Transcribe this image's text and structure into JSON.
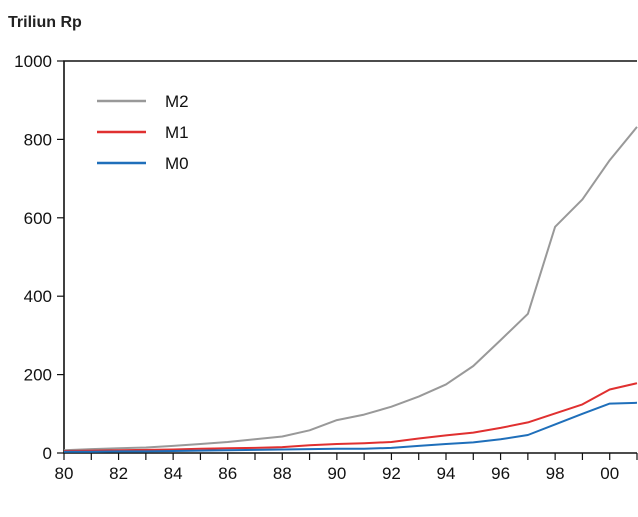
{
  "chart_data": {
    "type": "line",
    "title": "",
    "xlabel": "",
    "ylabel": "Triliun Rp",
    "x": [
      1980,
      1981,
      1982,
      1983,
      1984,
      1985,
      1986,
      1987,
      1988,
      1989,
      1990,
      1991,
      1992,
      1993,
      1994,
      1995,
      1996,
      1997,
      1998,
      1999,
      2000,
      2001
    ],
    "xticks": [
      1980,
      1982,
      1984,
      1986,
      1988,
      1990,
      1992,
      1994,
      1996,
      1998,
      2000
    ],
    "xtick_labels": [
      "80",
      "82",
      "84",
      "86",
      "88",
      "90",
      "92",
      "94",
      "96",
      "98",
      "00"
    ],
    "xlim": [
      1980,
      2001
    ],
    "ylim": [
      0,
      1000
    ],
    "yticks": [
      0,
      200,
      400,
      600,
      800,
      1000
    ],
    "ytick_labels": [
      "0",
      "200",
      "400",
      "600",
      "800",
      "1000"
    ],
    "grid": false,
    "legend_position": "top-left",
    "series": [
      {
        "name": "M2",
        "color": "#999999",
        "values": [
          7,
          10,
          12,
          14,
          18,
          23,
          28,
          35,
          42,
          58,
          84,
          98,
          118,
          144,
          175,
          222,
          288,
          355,
          577,
          647,
          747,
          832
        ]
      },
      {
        "name": "M1",
        "color": "#e03030",
        "values": [
          5,
          6,
          7,
          8,
          9,
          11,
          12,
          13,
          15,
          20,
          23,
          25,
          28,
          37,
          45,
          52,
          64,
          78,
          101,
          124,
          162,
          178
        ]
      },
      {
        "name": "M0",
        "color": "#1f6fba",
        "values": [
          3,
          3,
          4,
          4,
          5,
          6,
          7,
          8,
          9,
          10,
          11,
          11,
          13,
          18,
          23,
          27,
          35,
          46,
          73,
          100,
          126,
          128
        ]
      }
    ]
  }
}
